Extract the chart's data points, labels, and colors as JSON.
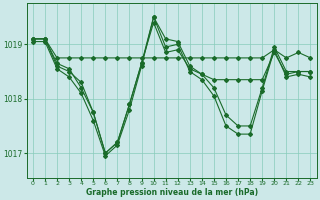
{
  "background_color": "#cce8e8",
  "grid_color": "#88ccbb",
  "line_color": "#1a6b2a",
  "xlabel": "Graphe pression niveau de la mer (hPa)",
  "xlim": [
    -0.5,
    23.5
  ],
  "ylim": [
    1016.55,
    1019.75
  ],
  "yticks": [
    1017,
    1018,
    1019
  ],
  "xticks": [
    0,
    1,
    2,
    3,
    4,
    5,
    6,
    7,
    8,
    9,
    10,
    11,
    12,
    13,
    14,
    15,
    16,
    17,
    18,
    19,
    20,
    21,
    22,
    23
  ],
  "series": [
    {
      "x": [
        0,
        1,
        2,
        3,
        4,
        5,
        6,
        7,
        8,
        9,
        10,
        11,
        12,
        13,
        14,
        15,
        16,
        17,
        18,
        19,
        20,
        21,
        22,
        23
      ],
      "y": [
        1019.1,
        1019.1,
        1018.75,
        1018.75,
        1018.75,
        1018.75,
        1018.75,
        1018.75,
        1018.75,
        1018.75,
        1018.75,
        1018.75,
        1018.75,
        1018.75,
        1018.75,
        1018.75,
        1018.75,
        1018.75,
        1018.75,
        1018.75,
        1018.9,
        1018.75,
        1018.85,
        1018.75
      ]
    },
    {
      "x": [
        0,
        1,
        2,
        3,
        4,
        5,
        6,
        7,
        8,
        9,
        10,
        11,
        12,
        13,
        14,
        15,
        16,
        17,
        18,
        19,
        20,
        21,
        22,
        23
      ],
      "y": [
        1019.1,
        1019.1,
        1018.6,
        1018.5,
        1018.3,
        1017.75,
        1017.0,
        1017.2,
        1017.9,
        1018.65,
        1019.4,
        1018.85,
        1018.9,
        1018.55,
        1018.45,
        1018.35,
        1018.35,
        1018.35,
        1018.35,
        1018.35,
        1018.85,
        1018.45,
        1018.5,
        1018.5
      ]
    },
    {
      "x": [
        0,
        1,
        2,
        3,
        4,
        5,
        6,
        7,
        8,
        9,
        10,
        11,
        12,
        13,
        14,
        15,
        16,
        17,
        18,
        19,
        20,
        21,
        22,
        23
      ],
      "y": [
        1019.05,
        1019.05,
        1018.55,
        1018.4,
        1018.1,
        1017.6,
        1016.95,
        1017.15,
        1017.8,
        1018.6,
        1019.5,
        1018.95,
        1019.0,
        1018.5,
        1018.35,
        1018.05,
        1017.5,
        1017.35,
        1017.35,
        1018.15,
        1018.9,
        1018.4,
        1018.45,
        1018.4
      ]
    },
    {
      "x": [
        0,
        1,
        2,
        3,
        4,
        5,
        6,
        7,
        8,
        9,
        10,
        11,
        12,
        13,
        14,
        15,
        16,
        17,
        18,
        19,
        20,
        21,
        22,
        23
      ],
      "y": [
        1019.1,
        1019.1,
        1018.65,
        1018.55,
        1018.2,
        1017.75,
        1017.0,
        1017.2,
        1017.9,
        1018.65,
        1019.5,
        1019.1,
        1019.05,
        1018.6,
        1018.45,
        1018.2,
        1017.7,
        1017.5,
        1017.5,
        1018.2,
        1018.95,
        1018.5,
        1018.5,
        1018.5
      ]
    }
  ],
  "markersize": 2.0,
  "linewidth": 0.8
}
